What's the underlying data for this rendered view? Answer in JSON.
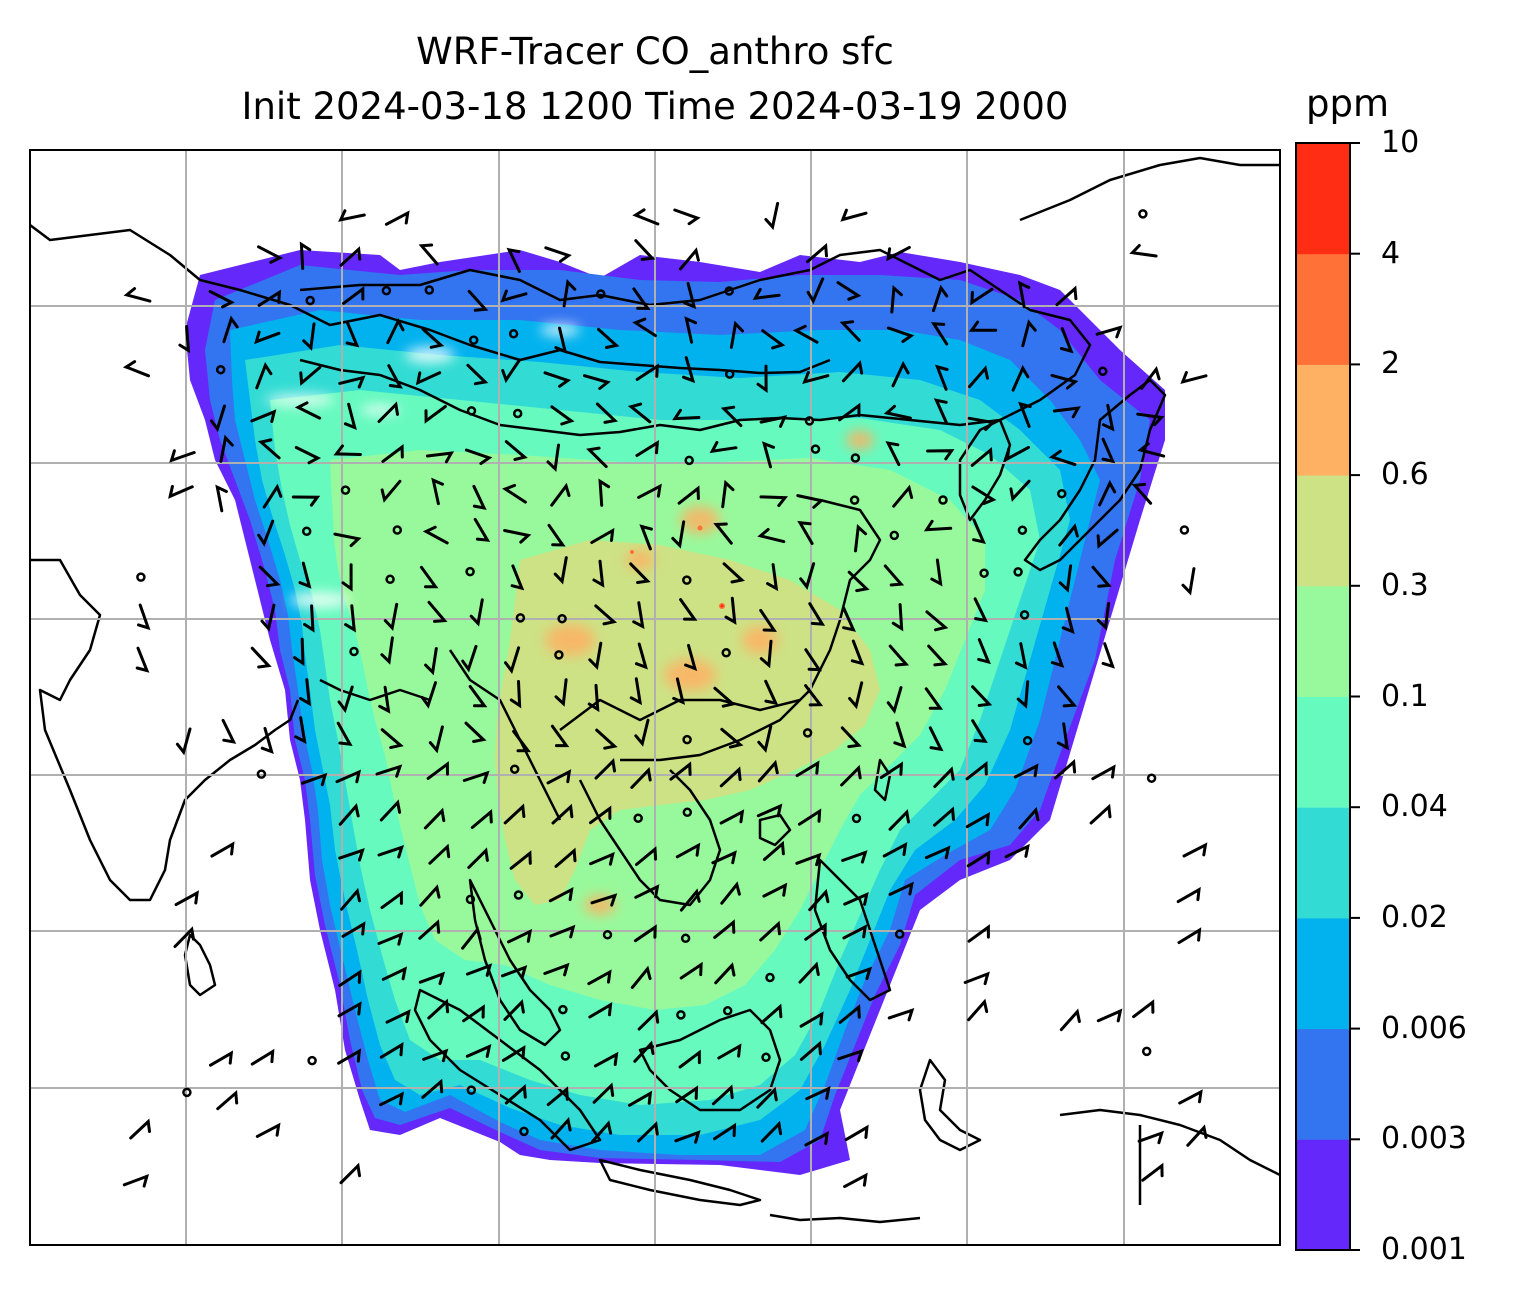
{
  "title_line1": "WRF-Tracer CO_anthro sfc",
  "title_line2": "Init 2024-03-18 1200 Time 2024-03-19 2000",
  "colorbar": {
    "unit": "ppm",
    "levels": [
      "0.001",
      "0.003",
      "0.006",
      "0.02",
      "0.04",
      "0.1",
      "0.3",
      "0.6",
      "2",
      "4",
      "10"
    ],
    "colors": [
      "#6428fa",
      "#3375f0",
      "#02b2ee",
      "#32dcd4",
      "#66fabf",
      "#98f99c",
      "#cde285",
      "#feb163",
      "#ff7136",
      "#ff2d14"
    ]
  },
  "map": {
    "background": "#ffffff",
    "gridlines": true,
    "coastlines": true,
    "wind_barbs": true
  }
}
